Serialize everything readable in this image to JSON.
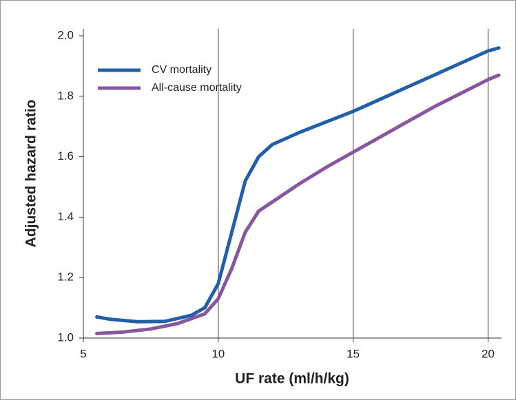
{
  "chart_data": {
    "type": "line",
    "x_label": "UF rate (ml/h/kg)",
    "y_label": "Adjusted hazard ratio",
    "xlim": [
      5,
      20.5
    ],
    "xticks": [
      5,
      10,
      15,
      20
    ],
    "ylim": [
      1.0,
      2.0
    ],
    "yticks": [
      {
        "value": 1.0,
        "label": "1.0"
      },
      {
        "value": 1.2,
        "label": "1.2"
      },
      {
        "value": 1.4,
        "label": "1.4"
      },
      {
        "value": 1.6,
        "label": "1.6"
      },
      {
        "value": 1.8,
        "label": "1.8"
      },
      {
        "value": 2.0,
        "label": "2.0"
      }
    ],
    "grid": "x",
    "legend": "upper left",
    "series": [
      {
        "name": "CV mortality",
        "color": "#2160a9",
        "x": [
          5.5,
          6,
          7,
          8,
          9,
          9.5,
          10,
          10.5,
          11,
          11.5,
          12,
          13,
          14,
          15,
          16,
          17,
          18,
          19,
          20,
          20.4
        ],
        "values": [
          1.07,
          1.062,
          1.054,
          1.055,
          1.075,
          1.1,
          1.18,
          1.35,
          1.52,
          1.6,
          1.64,
          1.68,
          1.715,
          1.75,
          1.79,
          1.83,
          1.87,
          1.91,
          1.95,
          1.96
        ]
      },
      {
        "name": "All-cause mortality",
        "color": "#8a559f",
        "x": [
          5.5,
          6.5,
          7.5,
          8.5,
          9.5,
          10,
          10.5,
          11,
          11.5,
          12,
          13,
          14,
          15,
          16,
          17,
          18,
          19,
          20,
          20.4
        ],
        "values": [
          1.015,
          1.02,
          1.03,
          1.048,
          1.08,
          1.13,
          1.23,
          1.35,
          1.42,
          1.45,
          1.51,
          1.565,
          1.615,
          1.665,
          1.715,
          1.765,
          1.81,
          1.855,
          1.87
        ]
      }
    ]
  }
}
